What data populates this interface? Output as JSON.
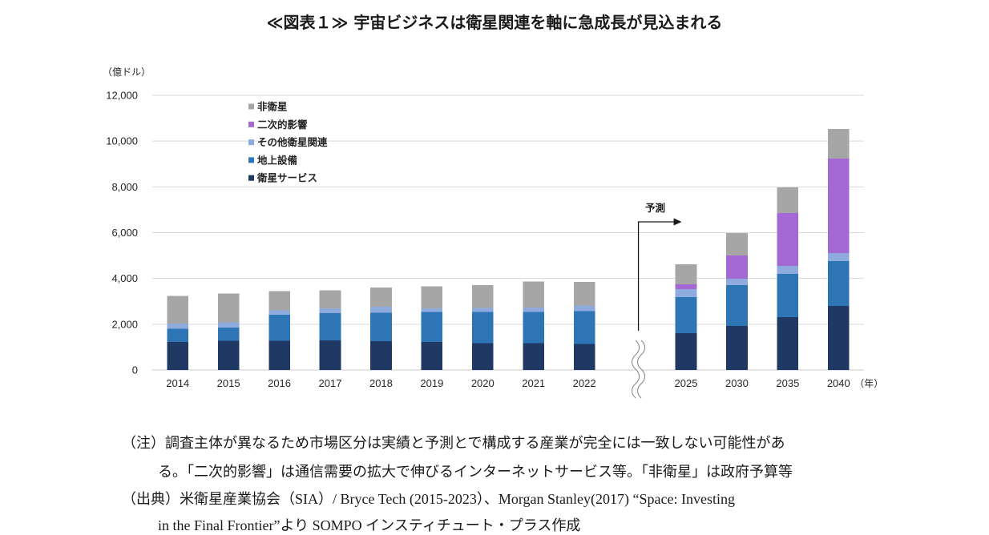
{
  "chart_data": {
    "type": "bar",
    "stacked": true,
    "title": "≪図表１≫ 宇宙ビジネスは衛星関連を軸に急成長が見込まれる",
    "ylabel": "（億ドル）",
    "xlabel": "（年）",
    "ylim": [
      0,
      12000
    ],
    "yticks": [
      0,
      2000,
      4000,
      6000,
      8000,
      10000,
      12000
    ],
    "ytick_labels": [
      "0",
      "2,000",
      "4,000",
      "6,000",
      "8,000",
      "10,000",
      "12,000"
    ],
    "categories": [
      "2014",
      "2015",
      "2016",
      "2017",
      "2018",
      "2019",
      "2020",
      "2021",
      "2022",
      "2025",
      "2030",
      "2035",
      "2040"
    ],
    "axis_break_after": "2022",
    "forecast_label": "予測",
    "grid": true,
    "legend_position": "top-left",
    "series": [
      {
        "name": "衛星サービス",
        "color": "#203864",
        "values": [
          1230,
          1270,
          1280,
          1290,
          1260,
          1230,
          1180,
          1180,
          1130,
          1610,
          1920,
          2310,
          2800
        ]
      },
      {
        "name": "地上設備",
        "color": "#2e75b6",
        "values": [
          580,
          590,
          1140,
          1200,
          1250,
          1300,
          1350,
          1360,
          1450,
          1570,
          1790,
          1890,
          1960
        ]
      },
      {
        "name": "その他衛星関連",
        "color": "#8faadc",
        "values": [
          220,
          220,
          190,
          200,
          260,
          170,
          180,
          190,
          230,
          350,
          280,
          350,
          350
        ]
      },
      {
        "name": "二次的影響",
        "color": "#a368d4",
        "values": [
          0,
          0,
          0,
          0,
          0,
          0,
          0,
          0,
          0,
          210,
          1010,
          2310,
          4130
        ]
      },
      {
        "name": "非衛星",
        "color": "#a6a6a6",
        "values": [
          1200,
          1270,
          830,
          790,
          830,
          950,
          1000,
          1130,
          1030,
          880,
          980,
          1120,
          1290
        ]
      }
    ]
  },
  "notes": {
    "note_label": "（注）",
    "note_lines": [
      "調査主体が異なるため市場区分は実績と予測とで構成する産業が完全には一致しない可能性があ",
      "る。「二次的影響」は通信需要の拡大で伸びるインターネットサービス等。「非衛星」は政府予算等"
    ],
    "source_label": "（出典）",
    "source_lines": [
      "米衛星産業協会（SIA）/ Bryce Tech (2015-2023）、Morgan Stanley(2017) “Space: Investing",
      "in the Final Frontier”より SOMPO インスティチュート・プラス作成"
    ]
  }
}
